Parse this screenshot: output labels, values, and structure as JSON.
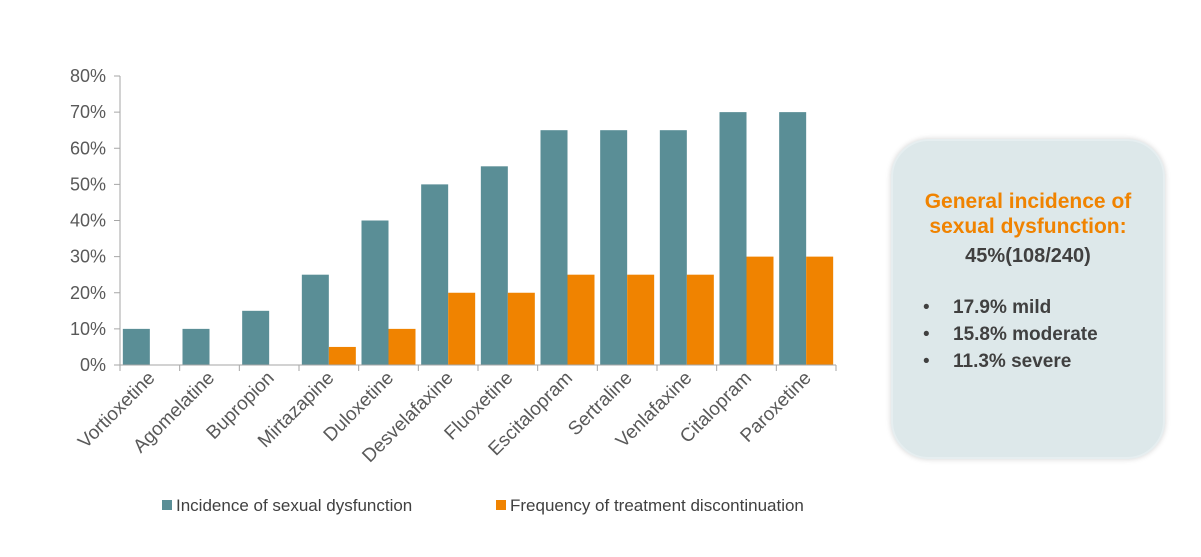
{
  "chart_data": {
    "type": "bar",
    "categories": [
      "Vortioxetine",
      "Agomelatine",
      "Bupropion",
      "Mirtazapine",
      "Duloxetine",
      "Desvelafaxine",
      "Fluoxetine",
      "Escitalopram",
      "Sertraline",
      "Venlafaxine",
      "Citalopram",
      "Paroxetine"
    ],
    "series": [
      {
        "name": "Incidence of sexual dysfunction",
        "color": "#5a8e96",
        "values": [
          10,
          10,
          15,
          25,
          40,
          50,
          55,
          65,
          65,
          65,
          70,
          70
        ]
      },
      {
        "name": "Frequency of treatment discontinuation",
        "color": "#f08300",
        "values": [
          0,
          0,
          0,
          5,
          10,
          20,
          20,
          25,
          25,
          25,
          30,
          30
        ]
      }
    ],
    "ylim": [
      0,
      80
    ],
    "yticks": [
      0,
      10,
      20,
      30,
      40,
      50,
      60,
      70,
      80
    ],
    "ytick_labels": [
      "0%",
      "10%",
      "20%",
      "30%",
      "40%",
      "50%",
      "60%",
      "70%",
      "80%"
    ],
    "title": "",
    "xlabel": "",
    "ylabel": "",
    "grid": false,
    "legend_position": "bottom"
  },
  "info_box": {
    "title": "General incidence of sexual dysfunction:",
    "value": "45%(108/240)",
    "items": [
      {
        "bullet": "•",
        "text": "17.9% mild"
      },
      {
        "bullet": "•",
        "text": "15.8% moderate"
      },
      {
        "bullet": "•",
        "text": "11.3% severe"
      }
    ]
  }
}
